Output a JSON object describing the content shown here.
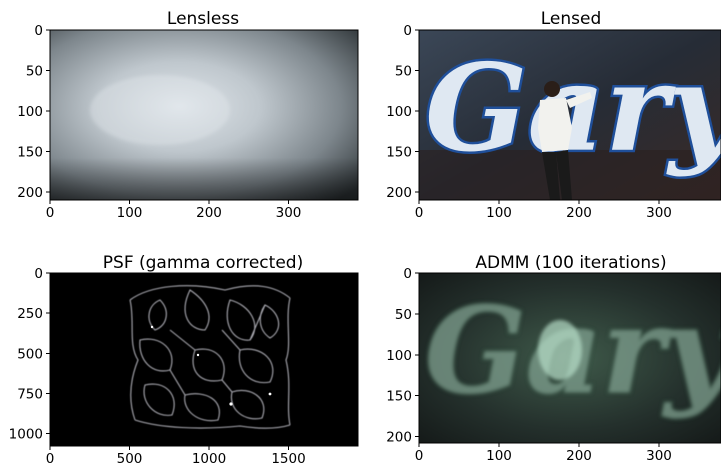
{
  "panels": [
    {
      "id": "lensless",
      "title": "Lensless",
      "x_ticks": [
        "0",
        "100",
        "200",
        "300"
      ],
      "y_ticks": [
        "0",
        "50",
        "100",
        "150",
        "200"
      ]
    },
    {
      "id": "lensed",
      "title": "Lensed",
      "x_ticks": [
        "0",
        "100",
        "200",
        "300"
      ],
      "y_ticks": [
        "0",
        "50",
        "100",
        "150",
        "200"
      ]
    },
    {
      "id": "psf",
      "title": "PSF (gamma corrected)",
      "x_ticks": [
        "0",
        "500",
        "1000",
        "1500"
      ],
      "y_ticks": [
        "0",
        "250",
        "500",
        "750",
        "1000"
      ]
    },
    {
      "id": "admm",
      "title": "ADMM (100 iterations)",
      "x_ticks": [
        "0",
        "100",
        "200",
        "300"
      ],
      "y_ticks": [
        "0",
        "50",
        "100",
        "150",
        "200"
      ]
    }
  ],
  "graffiti_text": "Gary"
}
